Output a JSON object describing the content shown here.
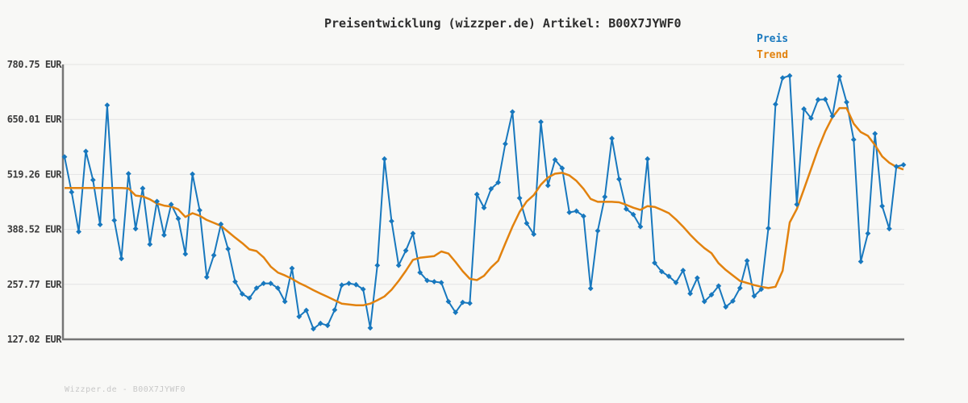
{
  "title": "Preisentwicklung (wizzper.de) Artikel: B00X7JYWF0",
  "footer": "Wizzper.de - B00X7JYWF0",
  "legend": {
    "items": [
      {
        "label": "Preis",
        "color": "#1878be"
      },
      {
        "label": "Trend",
        "color": "#e2820e"
      }
    ]
  },
  "colors": {
    "background": "#f8f8f6",
    "grid": "#e3e3e3",
    "axis": "#757575",
    "tick_text": "#3a3a3a",
    "title_text": "#2e2e2e",
    "footer_text": "#c8c8c8",
    "price": "#1878be",
    "trend": "#e2820e"
  },
  "chart_data": {
    "type": "line",
    "title": "Preisentwicklung (wizzper.de) Artikel: B00X7JYWF0",
    "currency": "EUR",
    "grid": "horizontal",
    "legend_position": "top-right",
    "x_axis": {
      "tick_labels_visible": false
    },
    "y_axis": {
      "tick_values": [
        780.75,
        650.01,
        519.26,
        388.52,
        257.77,
        127.02
      ],
      "tick_suffix": " EUR",
      "ylim": [
        127.02,
        780.75
      ]
    },
    "series": [
      {
        "name": "Preis",
        "color": "#1878be",
        "marker": "diamond",
        "line_width": 2,
        "values": [
          561,
          477,
          383,
          574,
          506,
          400,
          684,
          410,
          319,
          521,
          390,
          486,
          353,
          455,
          375,
          448,
          414,
          330,
          520,
          434,
          275,
          327,
          401,
          342,
          264,
          235,
          225,
          249,
          260,
          260,
          249,
          217,
          296,
          181,
          196,
          152,
          165,
          160,
          197,
          256,
          260,
          257,
          246,
          154,
          303,
          556,
          408,
          303,
          338,
          379,
          286,
          267,
          264,
          262,
          217,
          191,
          215,
          213,
          472,
          440,
          485,
          500,
          592,
          668,
          463,
          403,
          377,
          644,
          493,
          554,
          534,
          429,
          432,
          420,
          248,
          385,
          466,
          605,
          508,
          437,
          424,
          395,
          556,
          309,
          288,
          277,
          262,
          291,
          236,
          273,
          217,
          233,
          254,
          204,
          218,
          249,
          314,
          230,
          246,
          391,
          686,
          749,
          754,
          448,
          675,
          653,
          697,
          698,
          658,
          752,
          691,
          602,
          312,
          379,
          616,
          444,
          390,
          538,
          542
        ]
      },
      {
        "name": "Trend",
        "color": "#e2820e",
        "marker": "none",
        "line_width": 2.5,
        "values": [
          487,
          487,
          487,
          487,
          487,
          487,
          487,
          487,
          487,
          486,
          469,
          467,
          460,
          450,
          445,
          443,
          436,
          418,
          427,
          421,
          411,
          404,
          397,
          383,
          369,
          356,
          341,
          337,
          322,
          300,
          286,
          279,
          271,
          261,
          253,
          244,
          236,
          228,
          220,
          212,
          210,
          208,
          208,
          212,
          220,
          229,
          245,
          266,
          290,
          316,
          321,
          323,
          325,
          336,
          331,
          311,
          289,
          271,
          268,
          278,
          298,
          314,
          355,
          395,
          430,
          455,
          470,
          495,
          512,
          521,
          523,
          517,
          504,
          485,
          461,
          454,
          454,
          454,
          453,
          447,
          440,
          435,
          444,
          442,
          435,
          427,
          412,
          395,
          376,
          359,
          344,
          332,
          308,
          292,
          279,
          266,
          261,
          256,
          252,
          249,
          252,
          290,
          405,
          437,
          484,
          532,
          580,
          622,
          655,
          677,
          677,
          640,
          620,
          611,
          589,
          562,
          547,
          537,
          531
        ]
      }
    ]
  }
}
